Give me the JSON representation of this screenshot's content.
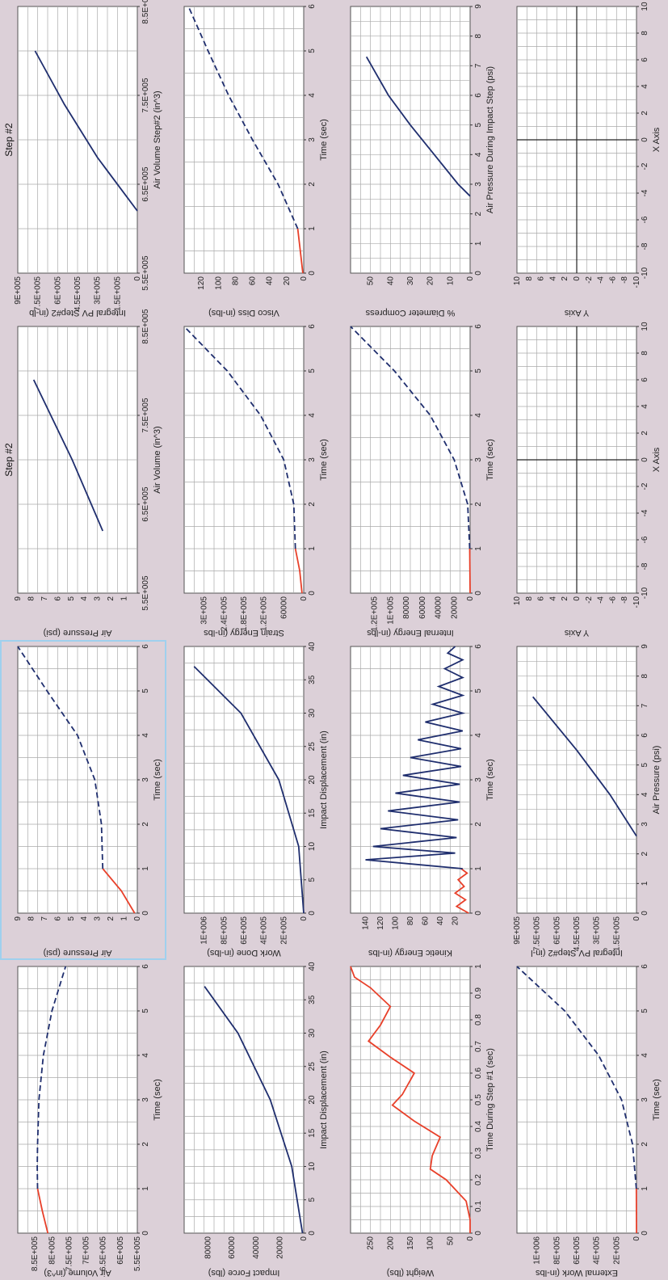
{
  "chart_data": [
    {
      "type": "line",
      "ylabel": "Air Volume (in^3)",
      "xlabel": "Time (sec)",
      "title": "",
      "xlim": [
        0,
        6
      ],
      "ylim": [
        550000,
        900000
      ],
      "xticks": [
        "0",
        "1",
        "2",
        "3",
        "4",
        "5",
        "6"
      ],
      "yticks": [
        "5.5E+005",
        "6E+005",
        "6.5E+005",
        "7E+005",
        "7.5E+005",
        "8E+005",
        "8.5E+005"
      ],
      "series": [
        {
          "color": "#e8402a",
          "dash": "",
          "points": [
            [
              0,
              812000
            ],
            [
              0.5,
              828000
            ],
            [
              1,
              842000
            ]
          ]
        },
        {
          "color": "#1f2e6e",
          "dash": "7 4",
          "points": [
            [
              1,
              842000
            ],
            [
              1.5,
              843000
            ],
            [
              2,
              842000
            ],
            [
              3,
              838000
            ],
            [
              4,
              825000
            ],
            [
              5,
              800000
            ],
            [
              6,
              760000
            ]
          ]
        }
      ]
    },
    {
      "type": "line",
      "ylabel": "Air Pressure (psi)",
      "xlabel": "Time (sec)",
      "title": "",
      "xlim": [
        0,
        6
      ],
      "ylim": [
        0,
        9
      ],
      "selected": true,
      "xticks": [
        "0",
        "1",
        "2",
        "3",
        "4",
        "5",
        "6"
      ],
      "yticks": [
        "0",
        "1",
        "2",
        "3",
        "4",
        "5",
        "6",
        "7",
        "8",
        "9"
      ],
      "series": [
        {
          "color": "#e8402a",
          "dash": "",
          "points": [
            [
              0,
              0.2
            ],
            [
              0.5,
              1.2
            ],
            [
              1,
              2.6
            ]
          ]
        },
        {
          "color": "#1f2e6e",
          "dash": "7 4",
          "points": [
            [
              1,
              2.6
            ],
            [
              2,
              2.7
            ],
            [
              3,
              3.2
            ],
            [
              4,
              4.5
            ],
            [
              5,
              6.8
            ],
            [
              6,
              9
            ]
          ]
        }
      ]
    },
    {
      "type": "line",
      "ylabel": "Air Pressure (psi)",
      "xlabel": "Air Volume (in^3)",
      "title": "Step #2",
      "xlim": [
        550000,
        850000
      ],
      "ylim": [
        0,
        9
      ],
      "xticks": [
        "5.5E+005",
        "6.5E+005",
        "7.5E+005",
        "8.5E+005"
      ],
      "yticks": [
        "1",
        "2",
        "3",
        "4",
        "5",
        "6",
        "7",
        "8",
        "9"
      ],
      "series": [
        {
          "color": "#1f2e6e",
          "dash": "",
          "points": [
            [
              620000,
              2.6
            ],
            [
              700000,
              4.9
            ],
            [
              790000,
              7.8
            ]
          ]
        }
      ]
    },
    {
      "type": "line",
      "ylabel": "Integral PV Step#2 (in-lb",
      "xlabel": "Air Volume Step#2 (in^3)",
      "title": "Step #2",
      "xlim": [
        550000,
        850000
      ],
      "ylim": [
        0,
        900000
      ],
      "xticks": [
        "5.5E+005",
        "6.5E+005",
        "7.5E+005",
        "8.5E+005"
      ],
      "yticks": [
        "0",
        "1.5E+005",
        "3E+005",
        "4.5E+005",
        "6E+005",
        "7.5E+005",
        "9E+005"
      ],
      "series": [
        {
          "color": "#1f2e6e",
          "dash": "",
          "points": [
            [
              620000,
              0
            ],
            [
              680000,
              300000
            ],
            [
              740000,
              550000
            ],
            [
              800000,
              770000
            ]
          ]
        }
      ]
    },
    {
      "type": "line",
      "ylabel": "Impact Force (lbs)",
      "xlabel": "Impact Displacement (in)",
      "title": "",
      "xlim": [
        0,
        40
      ],
      "ylim": [
        0,
        100000
      ],
      "xticks": [
        "0",
        "5",
        "10",
        "15",
        "20",
        "25",
        "30",
        "35",
        "40"
      ],
      "yticks": [
        "0",
        "20000",
        "40000",
        "60000",
        "80000"
      ],
      "series": [
        {
          "color": "#1f2e6e",
          "dash": "",
          "points": [
            [
              0,
              1000
            ],
            [
              10,
              10000
            ],
            [
              20,
              28000
            ],
            [
              30,
              55000
            ],
            [
              37,
              83000
            ]
          ]
        }
      ]
    },
    {
      "type": "line",
      "ylabel": "Work Done (in-lbs)",
      "xlabel": "Impact Displacement (in)",
      "title": "",
      "xlim": [
        0,
        40
      ],
      "ylim": [
        0,
        1200000
      ],
      "xticks": [
        "0",
        "5",
        "10",
        "15",
        "20",
        "25",
        "30",
        "35",
        "40"
      ],
      "yticks": [
        "0",
        "2E+005",
        "4E+005",
        "6E+005",
        "8E+005",
        "1E+006"
      ],
      "series": [
        {
          "color": "#1f2e6e",
          "dash": "",
          "points": [
            [
              0,
              0
            ],
            [
              10,
              50000
            ],
            [
              20,
              250000
            ],
            [
              30,
              630000
            ],
            [
              37,
              1100000
            ]
          ]
        }
      ]
    },
    {
      "type": "line",
      "ylabel": "Strain Energy (in-lbs",
      "xlabel": "Time (sec)",
      "title": "",
      "xlim": [
        0,
        6
      ],
      "ylim": [
        0,
        360000
      ],
      "xticks": [
        "0",
        "1",
        "2",
        "3",
        "4",
        "5",
        "6"
      ],
      "yticks": [
        "0",
        "60000",
        "1.2E+005",
        "1.8E+005",
        "2.4E+005",
        "3E+005"
      ],
      "series": [
        {
          "color": "#e8402a",
          "dash": "",
          "points": [
            [
              0,
              5000
            ],
            [
              0.5,
              12000
            ],
            [
              1,
              25000
            ]
          ]
        },
        {
          "color": "#1f2e6e",
          "dash": "7 4",
          "points": [
            [
              1,
              25000
            ],
            [
              2,
              30000
            ],
            [
              3,
              60000
            ],
            [
              4,
              130000
            ],
            [
              5,
              230000
            ],
            [
              6,
              360000
            ]
          ]
        }
      ]
    },
    {
      "type": "line",
      "ylabel": "Visco Diss (in-lbs)",
      "xlabel": "Time (sec)",
      "title": "",
      "xlim": [
        0,
        6
      ],
      "ylim": [
        0,
        140
      ],
      "xticks": [
        "0",
        "1",
        "2",
        "3",
        "4",
        "5",
        "6"
      ],
      "yticks": [
        "0",
        "20",
        "40",
        "60",
        "80",
        "100",
        "120"
      ],
      "series": [
        {
          "color": "#e8402a",
          "dash": "",
          "points": [
            [
              0,
              1
            ],
            [
              0.5,
              4
            ],
            [
              1,
              7
            ]
          ]
        },
        {
          "color": "#1f2e6e",
          "dash": "7 4",
          "points": [
            [
              1,
              7
            ],
            [
              2,
              30
            ],
            [
              3,
              60
            ],
            [
              4,
              88
            ],
            [
              5,
              112
            ],
            [
              6,
              135
            ]
          ]
        }
      ]
    },
    {
      "type": "line",
      "ylabel": "Weight (lbs)",
      "xlabel": "Time During Step #1 (sec)",
      "title": "",
      "xlim": [
        0,
        1
      ],
      "ylim": [
        0,
        300
      ],
      "xticks": [
        "0",
        "0.1",
        "0.2",
        "0.3",
        "0.4",
        "0.5",
        "0.6",
        "0.7",
        "0.8",
        "0.9",
        "1"
      ],
      "yticks": [
        "0",
        "50",
        "100",
        "150",
        "200",
        "250"
      ],
      "series": [
        {
          "color": "#e8402a",
          "dash": "",
          "points": [
            [
              0,
              0
            ],
            [
              0.05,
              0
            ],
            [
              0.12,
              10
            ],
            [
              0.2,
              60
            ],
            [
              0.24,
              100
            ],
            [
              0.29,
              95
            ],
            [
              0.36,
              75
            ],
            [
              0.42,
              140
            ],
            [
              0.48,
              195
            ],
            [
              0.52,
              170
            ],
            [
              0.6,
              140
            ],
            [
              0.66,
              200
            ],
            [
              0.72,
              255
            ],
            [
              0.78,
              225
            ],
            [
              0.85,
              200
            ],
            [
              0.92,
              250
            ],
            [
              0.96,
              290
            ],
            [
              1,
              300
            ]
          ]
        }
      ]
    },
    {
      "type": "line",
      "ylabel": "Kinetic Energy (in-lbs",
      "xlabel": "Time (sec)",
      "title": "",
      "xlim": [
        0,
        6
      ],
      "ylim": [
        0,
        160
      ],
      "xticks": [
        "0",
        "1",
        "2",
        "3",
        "4",
        "5",
        "6"
      ],
      "yticks": [
        "20",
        "40",
        "60",
        "80",
        "100",
        "120",
        "140"
      ],
      "series": [
        {
          "color": "#e8402a",
          "dash": "",
          "points": [
            [
              0,
              2
            ],
            [
              0.15,
              18
            ],
            [
              0.3,
              6
            ],
            [
              0.45,
              20
            ],
            [
              0.6,
              8
            ],
            [
              0.75,
              16
            ],
            [
              0.9,
              4
            ],
            [
              1,
              12
            ]
          ]
        },
        {
          "color": "#1f2e6e",
          "dash": "",
          "points": [
            [
              1,
              10
            ],
            [
              1.2,
              140
            ],
            [
              1.35,
              20
            ],
            [
              1.5,
              130
            ],
            [
              1.7,
              18
            ],
            [
              1.9,
              120
            ],
            [
              2.1,
              16
            ],
            [
              2.3,
              110
            ],
            [
              2.5,
              14
            ],
            [
              2.7,
              100
            ],
            [
              2.9,
              14
            ],
            [
              3.1,
              90
            ],
            [
              3.3,
              12
            ],
            [
              3.5,
              80
            ],
            [
              3.7,
              12
            ],
            [
              3.9,
              70
            ],
            [
              4.1,
              10
            ],
            [
              4.3,
              60
            ],
            [
              4.5,
              10
            ],
            [
              4.7,
              50
            ],
            [
              4.9,
              10
            ],
            [
              5.1,
              42
            ],
            [
              5.3,
              10
            ],
            [
              5.5,
              34
            ],
            [
              5.7,
              10
            ],
            [
              5.85,
              30
            ],
            [
              6,
              20
            ]
          ]
        }
      ]
    },
    {
      "type": "line",
      "ylabel": "Internal Energy (in-lbs",
      "xlabel": "Time (sec)",
      "title": "",
      "xlim": [
        0,
        6
      ],
      "ylim": [
        0,
        150000
      ],
      "xticks": [
        "0",
        "1",
        "2",
        "3",
        "4",
        "5",
        "6"
      ],
      "yticks": [
        "0",
        "20000",
        "40000",
        "60000",
        "80000",
        "1E+005",
        "1.2E+005"
      ],
      "series": [
        {
          "color": "#e8402a",
          "dash": "",
          "points": [
            [
              0,
              0
            ],
            [
              1,
              500
            ]
          ]
        },
        {
          "color": "#1f2e6e",
          "dash": "7 4",
          "points": [
            [
              1,
              500
            ],
            [
              2,
              3000
            ],
            [
              3,
              20000
            ],
            [
              4,
              50000
            ],
            [
              5,
              95000
            ],
            [
              6,
              150000
            ]
          ]
        }
      ]
    },
    {
      "type": "line",
      "ylabel": "% Diameter Compress",
      "xlabel": "Air Pressure During Impact Step (psi)",
      "title": "",
      "xlim": [
        0,
        9
      ],
      "ylim": [
        0,
        60
      ],
      "xticks": [
        "0",
        "1",
        "2",
        "3",
        "4",
        "5",
        "6",
        "7",
        "8",
        "9"
      ],
      "yticks": [
        "0",
        "10",
        "20",
        "30",
        "40",
        "50"
      ],
      "series": [
        {
          "color": "#1f2e6e",
          "dash": "",
          "points": [
            [
              2.6,
              0
            ],
            [
              3,
              6
            ],
            [
              4,
              18
            ],
            [
              5,
              30
            ],
            [
              6,
              41
            ],
            [
              7.3,
              52
            ]
          ]
        }
      ]
    },
    {
      "type": "line",
      "ylabel": "External Work (in-lbs",
      "xlabel": "Time (sec)",
      "title": "",
      "xlim": [
        0,
        6
      ],
      "ylim": [
        0,
        1200000
      ],
      "xticks": [
        "0",
        "1",
        "2",
        "3",
        "4",
        "5",
        "6"
      ],
      "yticks": [
        "0",
        "2E+005",
        "4E+005",
        "6E+005",
        "8E+005",
        "1E+006"
      ],
      "series": [
        {
          "color": "#e8402a",
          "dash": "",
          "points": [
            [
              0,
              0
            ],
            [
              1,
              2000
            ]
          ]
        },
        {
          "color": "#1f2e6e",
          "dash": "7 4",
          "points": [
            [
              1,
              2000
            ],
            [
              2,
              40000
            ],
            [
              3,
              150000
            ],
            [
              4,
              380000
            ],
            [
              5,
              720000
            ],
            [
              6,
              1200000
            ]
          ]
        }
      ]
    },
    {
      "type": "line",
      "ylabel": "Integral PV Step#2 (in-l",
      "xlabel": "Air Pressure (psi)",
      "title": "",
      "xlim": [
        0,
        9
      ],
      "ylim": [
        0,
        900000
      ],
      "xticks": [
        "0",
        "1",
        "2",
        "3",
        "4",
        "5",
        "6",
        "7",
        "8",
        "9"
      ],
      "yticks": [
        "0",
        "1.5E+005",
        "3E+005",
        "4.5E+005",
        "6E+005",
        "7.5E+005",
        "9E+005"
      ],
      "series": [
        {
          "color": "#1f2e6e",
          "dash": "",
          "points": [
            [
              2.6,
              0
            ],
            [
              4,
              200000
            ],
            [
              5.5,
              450000
            ],
            [
              7.3,
              780000
            ]
          ]
        }
      ]
    },
    {
      "type": "line",
      "ylabel": "Y Axis",
      "xlabel": "X Axis",
      "title": "",
      "empty": true,
      "xlim": [
        -10,
        10
      ],
      "ylim": [
        -10,
        10
      ],
      "xticks": [
        "-10",
        "-8",
        "-6",
        "-4",
        "-2",
        "0",
        "2",
        "4",
        "6",
        "8",
        "10"
      ],
      "yticks": [
        "-10",
        "-8",
        "-6",
        "-4",
        "-2",
        "0",
        "2",
        "4",
        "6",
        "8",
        "10"
      ],
      "series": []
    },
    {
      "type": "line",
      "ylabel": "Y Axis",
      "xlabel": "X Axis",
      "title": "",
      "empty": true,
      "xlim": [
        -10,
        10
      ],
      "ylim": [
        -10,
        10
      ],
      "xticks": [
        "-10",
        "-8",
        "-6",
        "-4",
        "-2",
        "0",
        "2",
        "4",
        "6",
        "8",
        "10"
      ],
      "yticks": [
        "-10",
        "-8",
        "-6",
        "-4",
        "-2",
        "0",
        "2",
        "4",
        "6",
        "8",
        "10"
      ],
      "series": []
    }
  ]
}
